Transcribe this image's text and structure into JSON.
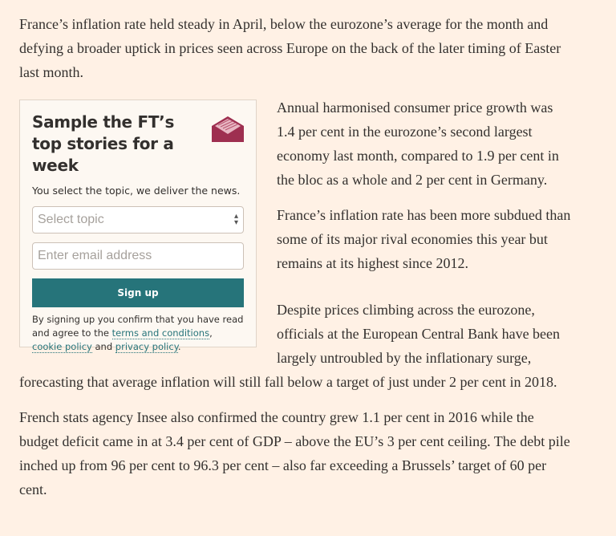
{
  "paragraphs": [
    "France’s inflation rate held steady in April, below the eurozone’s average for the month and defying a broader uptick in prices seen across Europe on the back of the later timing of Easter last month.",
    "Annual harmonised consumer price growth was 1.4 per cent in the eurozone’s second largest economy last month, compared to 1.9 per cent in the bloc as a whole and 2 per cent in Germany.",
    "France’s inflation rate has been more subdued than some of its major rival economies this year but remains at its highest since 2012.",
    "Despite prices climbing across the eurozone, officials at the European Central Bank have been largely untroubled by the inflationary surge, forecasting that average inflation will still fall below a target of just under 2 per cent in 2018.",
    "French stats agency Insee also confirmed the country grew 1.1 per cent in 2016 while the budget deficit came in at 3.4 per cent of GDP – above the EU’s 3 per cent ceiling. The debt pile inched up from 96 per cent to 96.3 per cent – also far exceeding a Brussels’ target of 60 per cent."
  ],
  "promo": {
    "title": "Sample the FT’s top stories for a week",
    "subtitle": "You select the topic, we deliver the news.",
    "topic_placeholder": "Select topic",
    "email_placeholder": "Enter email address",
    "signup_label": "Sign up",
    "legal_prefix": "By signing up you confirm that you have read and agree to the ",
    "terms_link": "terms and conditions",
    "comma": ", ",
    "cookie_link": "cookie policy",
    "and": " and ",
    "privacy_link": "privacy policy",
    "period": ".",
    "envelope_color": "#9e2f50",
    "button_color": "#26747a"
  }
}
